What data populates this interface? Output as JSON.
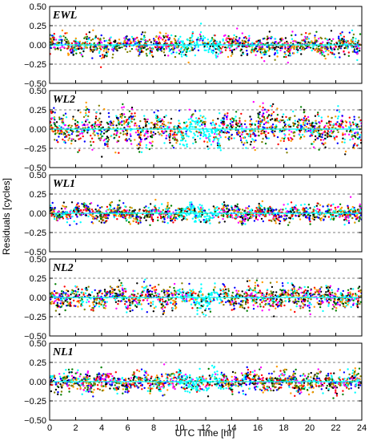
{
  "chart_data": {
    "type": "scatter",
    "xlabel": "UTC Time [hr]",
    "ylabel": "Residuals [cycles]",
    "xlim": [
      0,
      24
    ],
    "ylim": [
      -0.5,
      0.5
    ],
    "x_ticks": [
      0,
      2,
      4,
      6,
      8,
      10,
      12,
      14,
      16,
      18,
      20,
      22,
      24
    ],
    "y_ticks": [
      -0.5,
      -0.25,
      0.0,
      0.25,
      0.5
    ],
    "x_tick_labels": [
      "0",
      "2",
      "4",
      "6",
      "8",
      "10",
      "12",
      "14",
      "16",
      "18",
      "20",
      "22",
      "24"
    ],
    "y_tick_labels": [
      "−0.50",
      "−0.25",
      "0.00",
      "0.25",
      "0.50"
    ],
    "reference_lines": [
      -0.25,
      0.25
    ],
    "grid": false,
    "series_colors": [
      "#ff0000",
      "#000000",
      "#0000ff",
      "#008000",
      "#ff00ff",
      "#00ffff",
      "#ff9900",
      "#808000"
    ],
    "mean_line_color": "#00ffff",
    "panels": [
      {
        "label": "EWL",
        "spread": 0.06,
        "segments": [
          {
            "x0": 0.0,
            "x1": 3.0,
            "amp": 0.07
          },
          {
            "x0": 3.0,
            "x1": 4.5,
            "amp": 0.09,
            "bias": -0.12
          },
          {
            "x0": 4.5,
            "x1": 9.5,
            "amp": 0.07
          },
          {
            "x0": 9.5,
            "x1": 13.0,
            "amp": 0.12
          },
          {
            "x0": 13.0,
            "x1": 16.0,
            "amp": 0.08
          },
          {
            "x0": 16.0,
            "x1": 18.5,
            "amp": 0.1,
            "bias": -0.12
          },
          {
            "x0": 18.5,
            "x1": 24.0,
            "amp": 0.07
          }
        ]
      },
      {
        "label": "WL2",
        "spread": 0.1,
        "segments": [
          {
            "x0": 0.0,
            "x1": 3.0,
            "amp": 0.15
          },
          {
            "x0": 3.0,
            "x1": 9.5,
            "amp": 0.17
          },
          {
            "x0": 9.5,
            "x1": 13.0,
            "amp": 0.17
          },
          {
            "x0": 13.0,
            "x1": 16.0,
            "amp": 0.16
          },
          {
            "x0": 16.0,
            "x1": 18.5,
            "amp": 0.14,
            "bias": 0.18
          },
          {
            "x0": 18.5,
            "x1": 24.0,
            "amp": 0.15
          }
        ]
      },
      {
        "label": "WL1",
        "spread": 0.05,
        "segments": [
          {
            "x0": 0.0,
            "x1": 3.0,
            "amp": 0.07
          },
          {
            "x0": 3.0,
            "x1": 9.5,
            "amp": 0.09
          },
          {
            "x0": 9.5,
            "x1": 13.0,
            "amp": 0.1
          },
          {
            "x0": 13.0,
            "x1": 16.0,
            "amp": 0.08
          },
          {
            "x0": 16.0,
            "x1": 24.0,
            "amp": 0.07
          }
        ]
      },
      {
        "label": "NL2",
        "spread": 0.07,
        "segments": [
          {
            "x0": 0.0,
            "x1": 3.0,
            "amp": 0.09
          },
          {
            "x0": 3.0,
            "x1": 9.5,
            "amp": 0.12
          },
          {
            "x0": 9.5,
            "x1": 13.0,
            "amp": 0.13
          },
          {
            "x0": 13.0,
            "x1": 16.0,
            "amp": 0.11
          },
          {
            "x0": 16.0,
            "x1": 24.0,
            "amp": 0.1
          }
        ]
      },
      {
        "label": "NL1",
        "spread": 0.06,
        "segments": [
          {
            "x0": 0.0,
            "x1": 3.0,
            "amp": 0.06
          },
          {
            "x0": 3.0,
            "x1": 9.5,
            "amp": 0.1
          },
          {
            "x0": 9.5,
            "x1": 13.0,
            "amp": 0.11
          },
          {
            "x0": 13.0,
            "x1": 16.0,
            "amp": 0.1
          },
          {
            "x0": 16.0,
            "x1": 24.0,
            "amp": 0.08
          }
        ]
      }
    ]
  }
}
